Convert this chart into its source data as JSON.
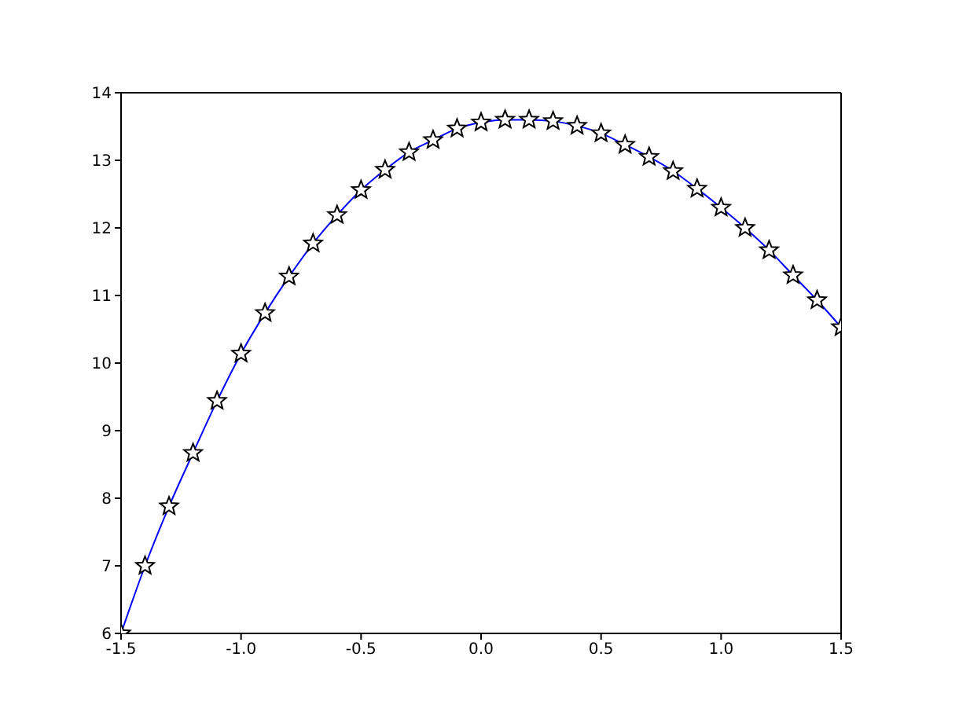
{
  "chart_data": {
    "type": "line",
    "x": [
      -1.5,
      -1.4,
      -1.3,
      -1.2,
      -1.1,
      -1.0,
      -0.9,
      -0.8,
      -0.7,
      -0.6,
      -0.5,
      -0.4,
      -0.3,
      -0.2,
      -0.1,
      0.0,
      0.1,
      0.2,
      0.3,
      0.4,
      0.5,
      0.6,
      0.7,
      0.8,
      0.9,
      1.0,
      1.1,
      1.2,
      1.3,
      1.4,
      1.5
    ],
    "series": [
      {
        "color": "#0000ff",
        "values": [
          6.0,
          7.0,
          7.88,
          8.67,
          9.44,
          10.14,
          10.74,
          11.28,
          11.77,
          12.19,
          12.56,
          12.86,
          13.12,
          13.3,
          13.47,
          13.56,
          13.6,
          13.6,
          13.58,
          13.51,
          13.4,
          13.23,
          13.05,
          12.84,
          12.58,
          12.3,
          12.0,
          11.67,
          11.3,
          10.93,
          10.53
        ]
      }
    ],
    "xlim": [
      -1.5,
      1.5
    ],
    "xticks": [
      -1.5,
      {
        "value": -1.0,
        "label": "-1.0"
      },
      -0.5,
      {
        "value": 0,
        "label": "0.0"
      },
      0.5,
      {
        "value": 1.0,
        "label": "1.0"
      },
      1.5
    ],
    "ylim": [
      6,
      14
    ],
    "yticks": [
      6,
      7,
      8,
      9,
      10,
      11,
      12,
      13,
      14
    ],
    "marker": "star",
    "line_style": "solid",
    "grid": false
  }
}
